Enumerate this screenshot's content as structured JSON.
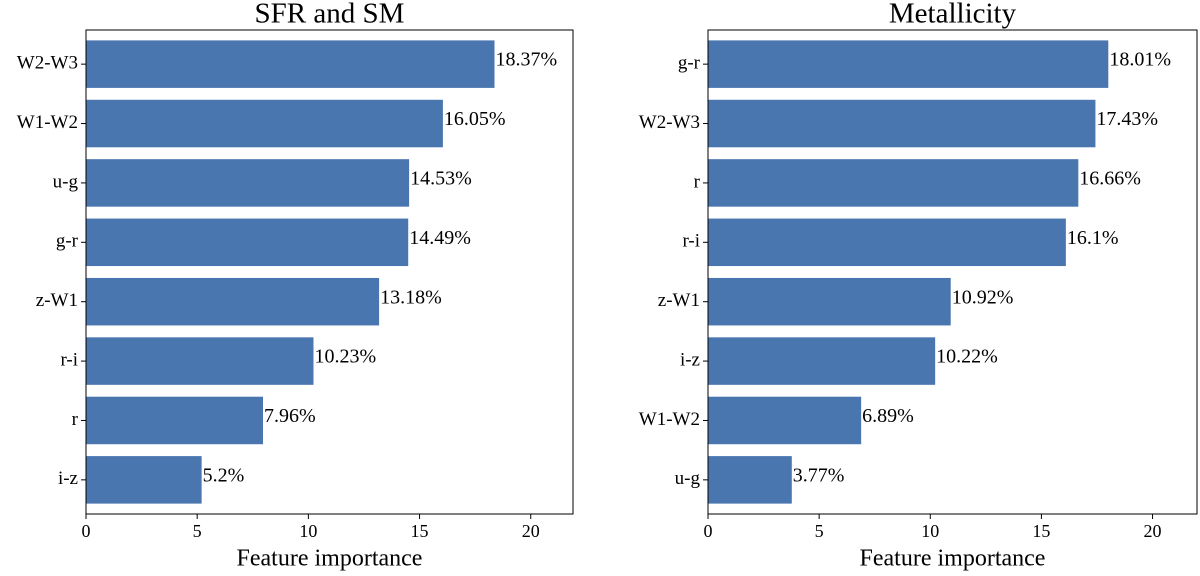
{
  "chart_data": [
    {
      "type": "barh",
      "title": "SFR and SM",
      "xlabel": "Feature importance",
      "categories": [
        "W2-W3",
        "W1-W2",
        "u-g",
        "g-r",
        "z-W1",
        "r-i",
        "r",
        "i-z"
      ],
      "values": [
        18.37,
        16.05,
        14.53,
        14.49,
        13.18,
        10.23,
        7.96,
        5.2
      ],
      "value_labels": [
        "18.37%",
        "16.05%",
        "14.53%",
        "14.49%",
        "13.18%",
        "10.23%",
        "7.96%",
        "5.2%"
      ],
      "color": "#4a76b0",
      "xlim": [
        0,
        21.9
      ],
      "xticks": [
        0,
        5,
        10,
        15,
        20
      ]
    },
    {
      "type": "barh",
      "title": "Metallicity",
      "xlabel": "Feature importance",
      "categories": [
        "g-r",
        "W2-W3",
        "r",
        "r-i",
        "z-W1",
        "i-z",
        "W1-W2",
        "u-g"
      ],
      "values": [
        18.01,
        17.43,
        16.66,
        16.1,
        10.92,
        10.22,
        6.89,
        3.77
      ],
      "value_labels": [
        "18.01%",
        "17.43%",
        "16.66%",
        "16.1%",
        "10.92%",
        "10.22%",
        "6.89%",
        "3.77%"
      ],
      "color": "#4a76b0",
      "xlim": [
        0,
        22
      ],
      "xticks": [
        0,
        5,
        10,
        15,
        20
      ]
    }
  ]
}
